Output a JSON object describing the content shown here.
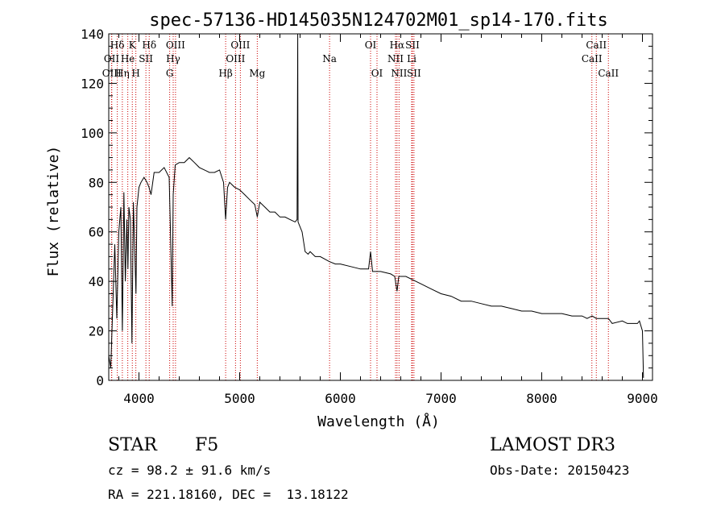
{
  "chart_data": {
    "type": "line",
    "title": "spec-57136-HD145035N124702M01_sp14-170.fits",
    "xlabel": "Wavelength (Å)",
    "ylabel": "Flux (relative)",
    "xlim": [
      3700,
      9100
    ],
    "ylim": [
      0,
      140
    ],
    "xticks": [
      4000,
      5000,
      6000,
      7000,
      8000,
      9000
    ],
    "yticks": [
      0,
      20,
      40,
      60,
      80,
      100,
      120,
      140
    ],
    "grid": false,
    "series": [
      {
        "name": "spectrum",
        "x": [
          3700,
          3720,
          3740,
          3760,
          3780,
          3800,
          3820,
          3835,
          3850,
          3865,
          3880,
          3890,
          3900,
          3915,
          3930,
          3945,
          3960,
          3970,
          3980,
          4000,
          4020,
          4050,
          4080,
          4100,
          4120,
          4150,
          4200,
          4250,
          4300,
          4330,
          4340,
          4360,
          4400,
          4450,
          4500,
          4550,
          4600,
          4650,
          4700,
          4750,
          4800,
          4840,
          4861,
          4880,
          4900,
          4950,
          5000,
          5050,
          5100,
          5150,
          5175,
          5200,
          5250,
          5300,
          5350,
          5400,
          5450,
          5500,
          5550,
          5570,
          5577,
          5580,
          5600,
          5620,
          5650,
          5680,
          5700,
          5750,
          5800,
          5890,
          5950,
          6000,
          6100,
          6200,
          6280,
          6300,
          6320,
          6400,
          6500,
          6540,
          6563,
          6580,
          6600,
          6650,
          6700,
          6800,
          6900,
          7000,
          7100,
          7200,
          7300,
          7400,
          7500,
          7600,
          7700,
          7800,
          7900,
          8000,
          8100,
          8200,
          8300,
          8400,
          8450,
          8500,
          8542,
          8600,
          8662,
          8700,
          8800,
          8850,
          8900,
          8950,
          8970,
          9000,
          9010
        ],
        "values": [
          10,
          5,
          30,
          55,
          25,
          60,
          70,
          20,
          76,
          40,
          65,
          45,
          70,
          65,
          15,
          72,
          50,
          35,
          70,
          78,
          80,
          82,
          80,
          78,
          75,
          84,
          84,
          86,
          82,
          30,
          75,
          87,
          88,
          88,
          90,
          88,
          86,
          85,
          84,
          84,
          85,
          80,
          65,
          78,
          80,
          78,
          77,
          75,
          73,
          71,
          66,
          72,
          70,
          68,
          68,
          66,
          66,
          65,
          64,
          65,
          140,
          64,
          62,
          60,
          52,
          51,
          52,
          50,
          50,
          48,
          47,
          47,
          46,
          45,
          45,
          52,
          44,
          44,
          43,
          42,
          36,
          42,
          42,
          42,
          41,
          39,
          37,
          35,
          34,
          32,
          32,
          31,
          30,
          30,
          29,
          28,
          28,
          27,
          27,
          27,
          26,
          26,
          25,
          26,
          25,
          25,
          25,
          23,
          24,
          23,
          23,
          23,
          24,
          20,
          1
        ]
      }
    ],
    "line_markers": [
      {
        "label": "Hδ",
        "x": 3785,
        "row": 1
      },
      {
        "label": "OII",
        "x": 3728,
        "row": 2
      },
      {
        "label": "OIII",
        "x": 3730,
        "row": 3
      },
      {
        "label": "He",
        "x": 3889,
        "row": 2
      },
      {
        "label": "Hη",
        "x": 3835,
        "row": 3
      },
      {
        "label": "K",
        "x": 3934,
        "row": 1
      },
      {
        "label": "H",
        "x": 3969,
        "row": 3
      },
      {
        "label": "SII",
        "x": 4069,
        "row": 2
      },
      {
        "label": "Hδ",
        "x": 4102,
        "row": 1
      },
      {
        "label": "OIII",
        "x": 4363,
        "row": 1
      },
      {
        "label": "Hγ",
        "x": 4340,
        "row": 2
      },
      {
        "label": "G",
        "x": 4305,
        "row": 3
      },
      {
        "label": "Hβ",
        "x": 4861,
        "row": 3
      },
      {
        "label": "OIII",
        "x": 5007,
        "row": 1
      },
      {
        "label": "OIII",
        "x": 4959,
        "row": 2
      },
      {
        "label": "Mg",
        "x": 5175,
        "row": 3
      },
      {
        "label": "Na",
        "x": 5893,
        "row": 2
      },
      {
        "label": "OI",
        "x": 6300,
        "row": 1
      },
      {
        "label": "OI",
        "x": 6364,
        "row": 3
      },
      {
        "label": "Hα",
        "x": 6563,
        "row": 1
      },
      {
        "label": "NII",
        "x": 6548,
        "row": 2
      },
      {
        "label": "NII",
        "x": 6583,
        "row": 3
      },
      {
        "label": "SII",
        "x": 6716,
        "row": 1
      },
      {
        "label": "Li",
        "x": 6708,
        "row": 2
      },
      {
        "label": "SII",
        "x": 6731,
        "row": 3
      },
      {
        "label": "CaII",
        "x": 8542,
        "row": 1
      },
      {
        "label": "CaII",
        "x": 8498,
        "row": 2
      },
      {
        "label": "CaII",
        "x": 8662,
        "row": 3
      }
    ],
    "colors": {
      "spectrum": "#000000",
      "markers": "#cc0000",
      "axes": "#000000"
    }
  },
  "info": {
    "class": "STAR",
    "subclass": "F5",
    "survey": "LAMOST DR3",
    "cz": "cz = 98.2 ± 91.6 km/s",
    "obs_date": "Obs-Date: 20150423",
    "coords": "RA = 221.18160, DEC =  13.18122"
  }
}
